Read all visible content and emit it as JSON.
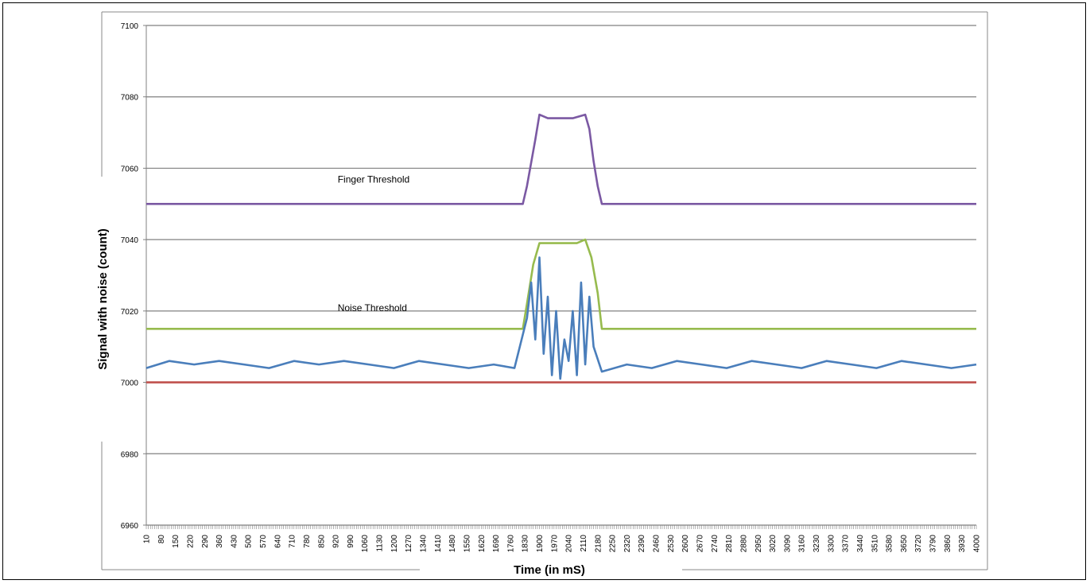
{
  "chart_data": {
    "type": "line",
    "title": "",
    "xlabel": "Time (in mS)",
    "ylabel": "Signal with noise (count)",
    "ylim": [
      6960,
      7100
    ],
    "yticks": [
      6960,
      6980,
      7000,
      7020,
      7040,
      7060,
      7080,
      7100
    ],
    "xlim": [
      10,
      4000
    ],
    "xtick_labels": [
      "10",
      "80",
      "150",
      "220",
      "290",
      "360",
      "430",
      "500",
      "570",
      "640",
      "710",
      "780",
      "850",
      "920",
      "990",
      "1060",
      "1130",
      "1200",
      "1270",
      "1340",
      "1410",
      "1480",
      "1550",
      "1620",
      "1690",
      "1760",
      "1830",
      "1900",
      "1970",
      "2040",
      "2110",
      "2180",
      "2250",
      "2320",
      "2390",
      "2460",
      "2530",
      "2600",
      "2670",
      "2740",
      "2810",
      "2880",
      "2950",
      "3020",
      "3090",
      "3160",
      "3230",
      "3300",
      "3370",
      "3440",
      "3510",
      "3580",
      "3650",
      "3720",
      "3790",
      "3860",
      "3930",
      "4000"
    ],
    "grid": true,
    "annotations": [
      {
        "text": "Finger Threshold",
        "x": 930,
        "y": 7056
      },
      {
        "text": "Noise Threshold",
        "x": 930,
        "y": 7020
      }
    ],
    "series": [
      {
        "color": "#7b59a3",
        "x": [
          10,
          240,
          480,
          720,
          960,
          1200,
          1440,
          1680,
          1780,
          1820,
          1840,
          1880,
          1900,
          1940,
          2000,
          2060,
          2120,
          2140,
          2160,
          2180,
          2200,
          2220,
          2440,
          2680,
          2920,
          3160,
          3400,
          3640,
          3880,
          4000
        ],
        "y": [
          7050,
          7050,
          7050,
          7050,
          7050,
          7050,
          7050,
          7050,
          7050,
          7050,
          7055,
          7068,
          7075,
          7074,
          7074,
          7074,
          7075,
          7071,
          7062,
          7055,
          7050,
          7050,
          7050,
          7050,
          7050,
          7050,
          7050,
          7050,
          7050,
          7050
        ]
      },
      {
        "color": "#97bb4e",
        "x": [
          10,
          240,
          480,
          720,
          960,
          1200,
          1440,
          1680,
          1780,
          1820,
          1840,
          1870,
          1900,
          1960,
          2020,
          2080,
          2120,
          2150,
          2180,
          2200,
          2220,
          2440,
          2680,
          2920,
          3160,
          3400,
          3640,
          3880,
          4000
        ],
        "y": [
          7015,
          7015,
          7015,
          7015,
          7015,
          7015,
          7015,
          7015,
          7015,
          7015,
          7022,
          7033,
          7039,
          7039,
          7039,
          7039,
          7040,
          7035,
          7025,
          7015,
          7015,
          7015,
          7015,
          7015,
          7015,
          7015,
          7015,
          7015,
          7015
        ]
      },
      {
        "color": "#4a7ebb",
        "x": [
          10,
          120,
          240,
          360,
          480,
          600,
          720,
          840,
          960,
          1080,
          1200,
          1320,
          1440,
          1560,
          1680,
          1780,
          1840,
          1860,
          1880,
          1900,
          1920,
          1940,
          1960,
          1980,
          2000,
          2020,
          2040,
          2060,
          2080,
          2100,
          2120,
          2140,
          2160,
          2200,
          2320,
          2440,
          2560,
          2680,
          2800,
          2920,
          3040,
          3160,
          3280,
          3400,
          3520,
          3640,
          3760,
          3880,
          4000
        ],
        "y": [
          7004,
          7006,
          7005,
          7006,
          7005,
          7004,
          7006,
          7005,
          7006,
          7005,
          7004,
          7006,
          7005,
          7004,
          7005,
          7004,
          7018,
          7028,
          7012,
          7035,
          7008,
          7024,
          7002,
          7020,
          7001,
          7012,
          7006,
          7020,
          7002,
          7028,
          7005,
          7024,
          7010,
          7003,
          7005,
          7004,
          7006,
          7005,
          7004,
          7006,
          7005,
          7004,
          7006,
          7005,
          7004,
          7006,
          7005,
          7004,
          7005
        ]
      },
      {
        "color": "#c0504d",
        "x": [
          10,
          400,
          800,
          1200,
          1600,
          2000,
          2400,
          2800,
          3200,
          3600,
          4000
        ],
        "y": [
          7000,
          7000,
          7000,
          7000,
          7000,
          7000,
          7000,
          7000,
          7000,
          7000,
          7000
        ]
      }
    ]
  }
}
